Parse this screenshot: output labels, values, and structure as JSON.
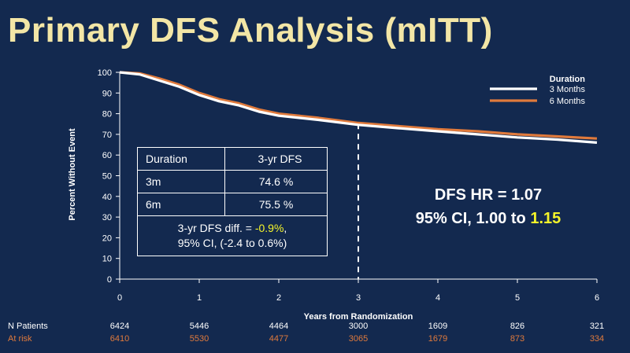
{
  "title": "Primary DFS Analysis (mITT)",
  "colors": {
    "three_months": "#ffffff",
    "six_months": "#e07a3c",
    "highlight": "#f5f52a",
    "background": "#13294f",
    "title": "#f3e6a6"
  },
  "chart_data": {
    "type": "line",
    "xlabel": "Years from Randomization",
    "ylabel": "Percent Without Event",
    "xlim": [
      0,
      6
    ],
    "ylim": [
      0,
      100
    ],
    "x_ticks": [
      0,
      1,
      2,
      3,
      4,
      5,
      6
    ],
    "y_ticks": [
      0,
      10,
      20,
      30,
      40,
      50,
      60,
      70,
      80,
      90,
      100
    ],
    "reference_line_x": 3,
    "legend": {
      "title": "Duration",
      "placement": "top-right"
    },
    "series": [
      {
        "name": "3 Months",
        "color": "#ffffff",
        "x": [
          0,
          0.25,
          0.5,
          0.75,
          1.0,
          1.25,
          1.5,
          1.75,
          2.0,
          2.5,
          3.0,
          3.5,
          4.0,
          4.5,
          5.0,
          5.5,
          6.0
        ],
        "y": [
          100,
          99,
          96,
          93,
          89,
          86,
          84,
          81,
          79,
          77,
          74.6,
          73,
          71.5,
          70,
          68.5,
          67.5,
          66
        ]
      },
      {
        "name": "6 Months",
        "color": "#e07a3c",
        "x": [
          0,
          0.25,
          0.5,
          0.75,
          1.0,
          1.25,
          1.5,
          1.75,
          2.0,
          2.5,
          3.0,
          3.5,
          4.0,
          4.5,
          5.0,
          5.5,
          6.0
        ],
        "y": [
          100,
          99.5,
          97,
          94,
          90,
          87,
          85,
          82,
          80,
          78,
          75.5,
          74,
          72.5,
          71.5,
          70,
          69,
          68
        ]
      }
    ]
  },
  "table": {
    "header": [
      "Duration",
      "3-yr DFS"
    ],
    "rows": [
      [
        "3m",
        "74.6 %"
      ],
      [
        "6m",
        "75.5 %"
      ]
    ],
    "diff_prefix": "3-yr DFS diff. = ",
    "diff_value": "-0.9%",
    "diff_suffix": ",",
    "diff_ci": "95% CI, (-2.4 to 0.6%)"
  },
  "hr": {
    "line1": "DFS HR = 1.07",
    "line2_prefix": "95% CI, 1.00 to ",
    "line2_value": "1.15"
  },
  "at_risk": {
    "label1": "N Patients",
    "label2": "At risk",
    "three_months": [
      "6424",
      "5446",
      "4464",
      "3000",
      "1609",
      "826",
      "321"
    ],
    "six_months": [
      "6410",
      "5530",
      "4477",
      "3065",
      "1679",
      "873",
      "334"
    ]
  }
}
